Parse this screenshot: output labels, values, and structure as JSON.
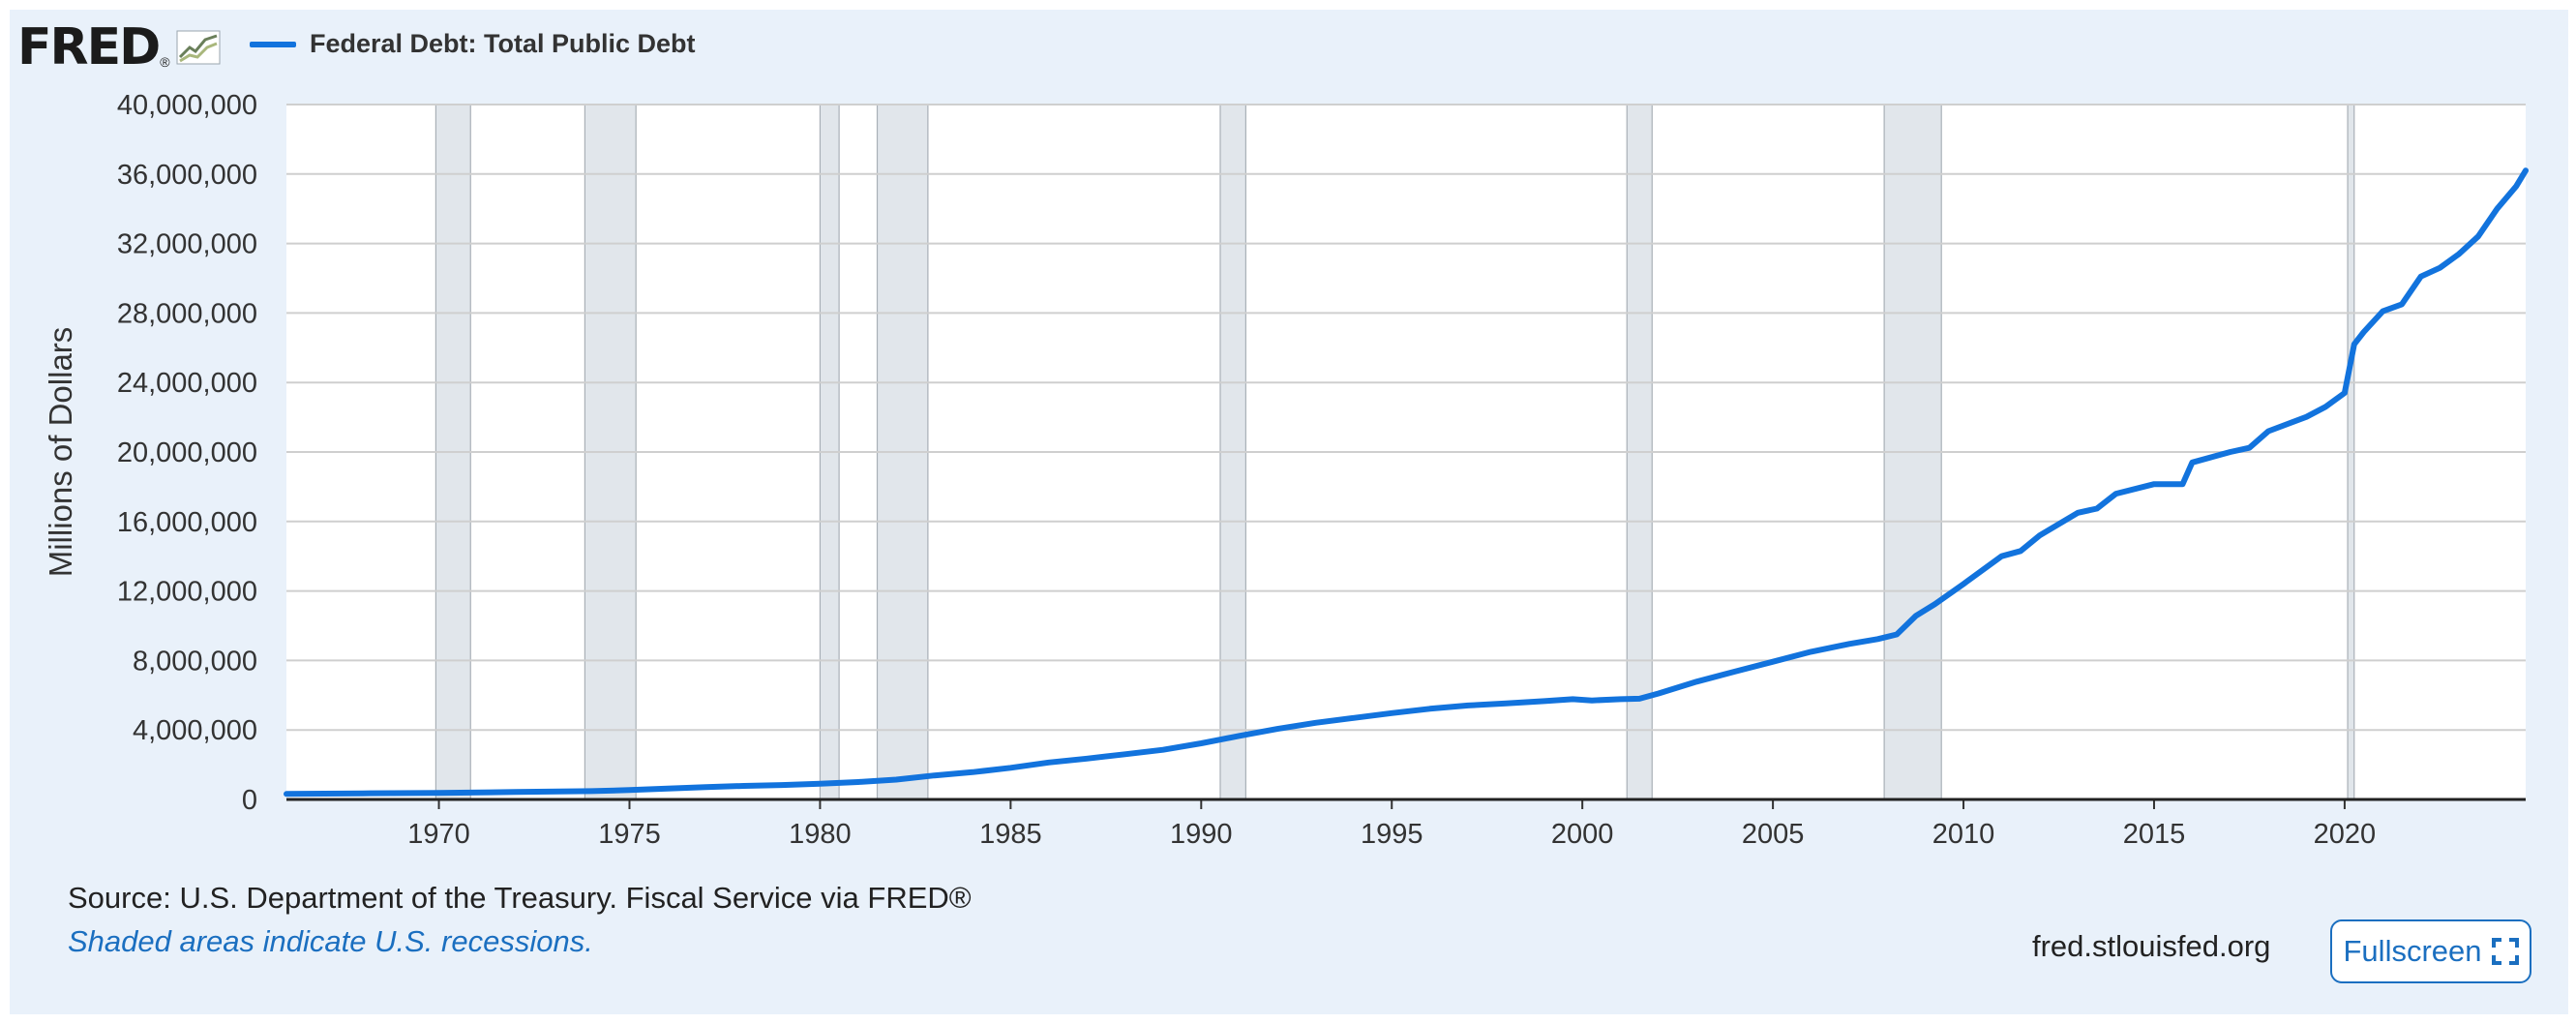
{
  "header": {
    "logo_text": "FRED",
    "logo_mark": "®",
    "series_label": "Federal Debt: Total Public Debt"
  },
  "colors": {
    "line": "#1273dd",
    "recession": "#e1e6eb",
    "grid": "#cfcfcf",
    "background": "#e9f1fa"
  },
  "chart_data": {
    "type": "line",
    "title": "",
    "xlabel": "",
    "ylabel": "Millions of Dollars",
    "ylim": [
      0,
      40000000
    ],
    "xlim": [
      1966.0,
      2024.75
    ],
    "y_ticks": [
      "0",
      "4,000,000",
      "8,000,000",
      "12,000,000",
      "16,000,000",
      "20,000,000",
      "24,000,000",
      "28,000,000",
      "32,000,000",
      "36,000,000",
      "40,000,000"
    ],
    "x_ticks": [
      "1970",
      "1975",
      "1980",
      "1985",
      "1990",
      "1995",
      "2000",
      "2005",
      "2010",
      "2015",
      "2020"
    ],
    "grid": true,
    "legend_position": "top-left",
    "recessions": [
      [
        1969.92,
        1970.83
      ],
      [
        1973.83,
        1975.17
      ],
      [
        1980.0,
        1980.5
      ],
      [
        1981.5,
        1982.83
      ],
      [
        1990.5,
        1991.17
      ],
      [
        2001.17,
        2001.83
      ],
      [
        2007.92,
        2009.42
      ],
      [
        2020.08,
        2020.25
      ]
    ],
    "series": [
      {
        "name": "Federal Debt: Total Public Debt",
        "x": [
          1966.0,
          1968.0,
          1970.0,
          1972.0,
          1974.0,
          1975.0,
          1976.0,
          1977.0,
          1978.0,
          1979.0,
          1980.0,
          1981.0,
          1982.0,
          1983.0,
          1984.0,
          1985.0,
          1986.0,
          1987.0,
          1988.0,
          1989.0,
          1990.0,
          1991.0,
          1992.0,
          1993.0,
          1994.0,
          1995.0,
          1996.0,
          1997.0,
          1998.0,
          1999.0,
          1999.75,
          2000.25,
          2001.0,
          2001.5,
          2002.0,
          2003.0,
          2004.0,
          2005.0,
          2006.0,
          2007.0,
          2007.75,
          2008.25,
          2008.75,
          2009.25,
          2010.0,
          2011.0,
          2011.5,
          2012.0,
          2013.0,
          2013.5,
          2014.0,
          2015.0,
          2015.75,
          2016.0,
          2017.0,
          2017.5,
          2018.0,
          2019.0,
          2019.5,
          2020.0,
          2020.25,
          2020.5,
          2021.0,
          2021.5,
          2022.0,
          2022.5,
          2023.0,
          2023.5,
          2024.0,
          2024.5,
          2024.75
        ],
        "values": [
          320000,
          350000,
          380000,
          430000,
          480000,
          540000,
          630000,
          710000,
          780000,
          830000,
          910000,
          1000000,
          1140000,
          1380000,
          1570000,
          1820000,
          2130000,
          2350000,
          2600000,
          2860000,
          3230000,
          3660000,
          4060000,
          4410000,
          4690000,
          4970000,
          5220000,
          5410000,
          5530000,
          5660000,
          5770000,
          5700000,
          5770000,
          5800000,
          6100000,
          6780000,
          7360000,
          7930000,
          8500000,
          8950000,
          9230000,
          9500000,
          10570000,
          11240000,
          12400000,
          14000000,
          14300000,
          15200000,
          16500000,
          16740000,
          17600000,
          18150000,
          18150000,
          19400000,
          20000000,
          20240000,
          21200000,
          22020000,
          22600000,
          23400000,
          26200000,
          26900000,
          28100000,
          28500000,
          30100000,
          30600000,
          31400000,
          32400000,
          34000000,
          35300000,
          36200000
        ]
      }
    ]
  },
  "footer": {
    "source": "Source: U.S. Department of the Treasury. Fiscal Service via FRED®",
    "note": "Shaded areas indicate U.S. recessions.",
    "site": "fred.stlouisfed.org",
    "fullscreen_label": "Fullscreen"
  }
}
